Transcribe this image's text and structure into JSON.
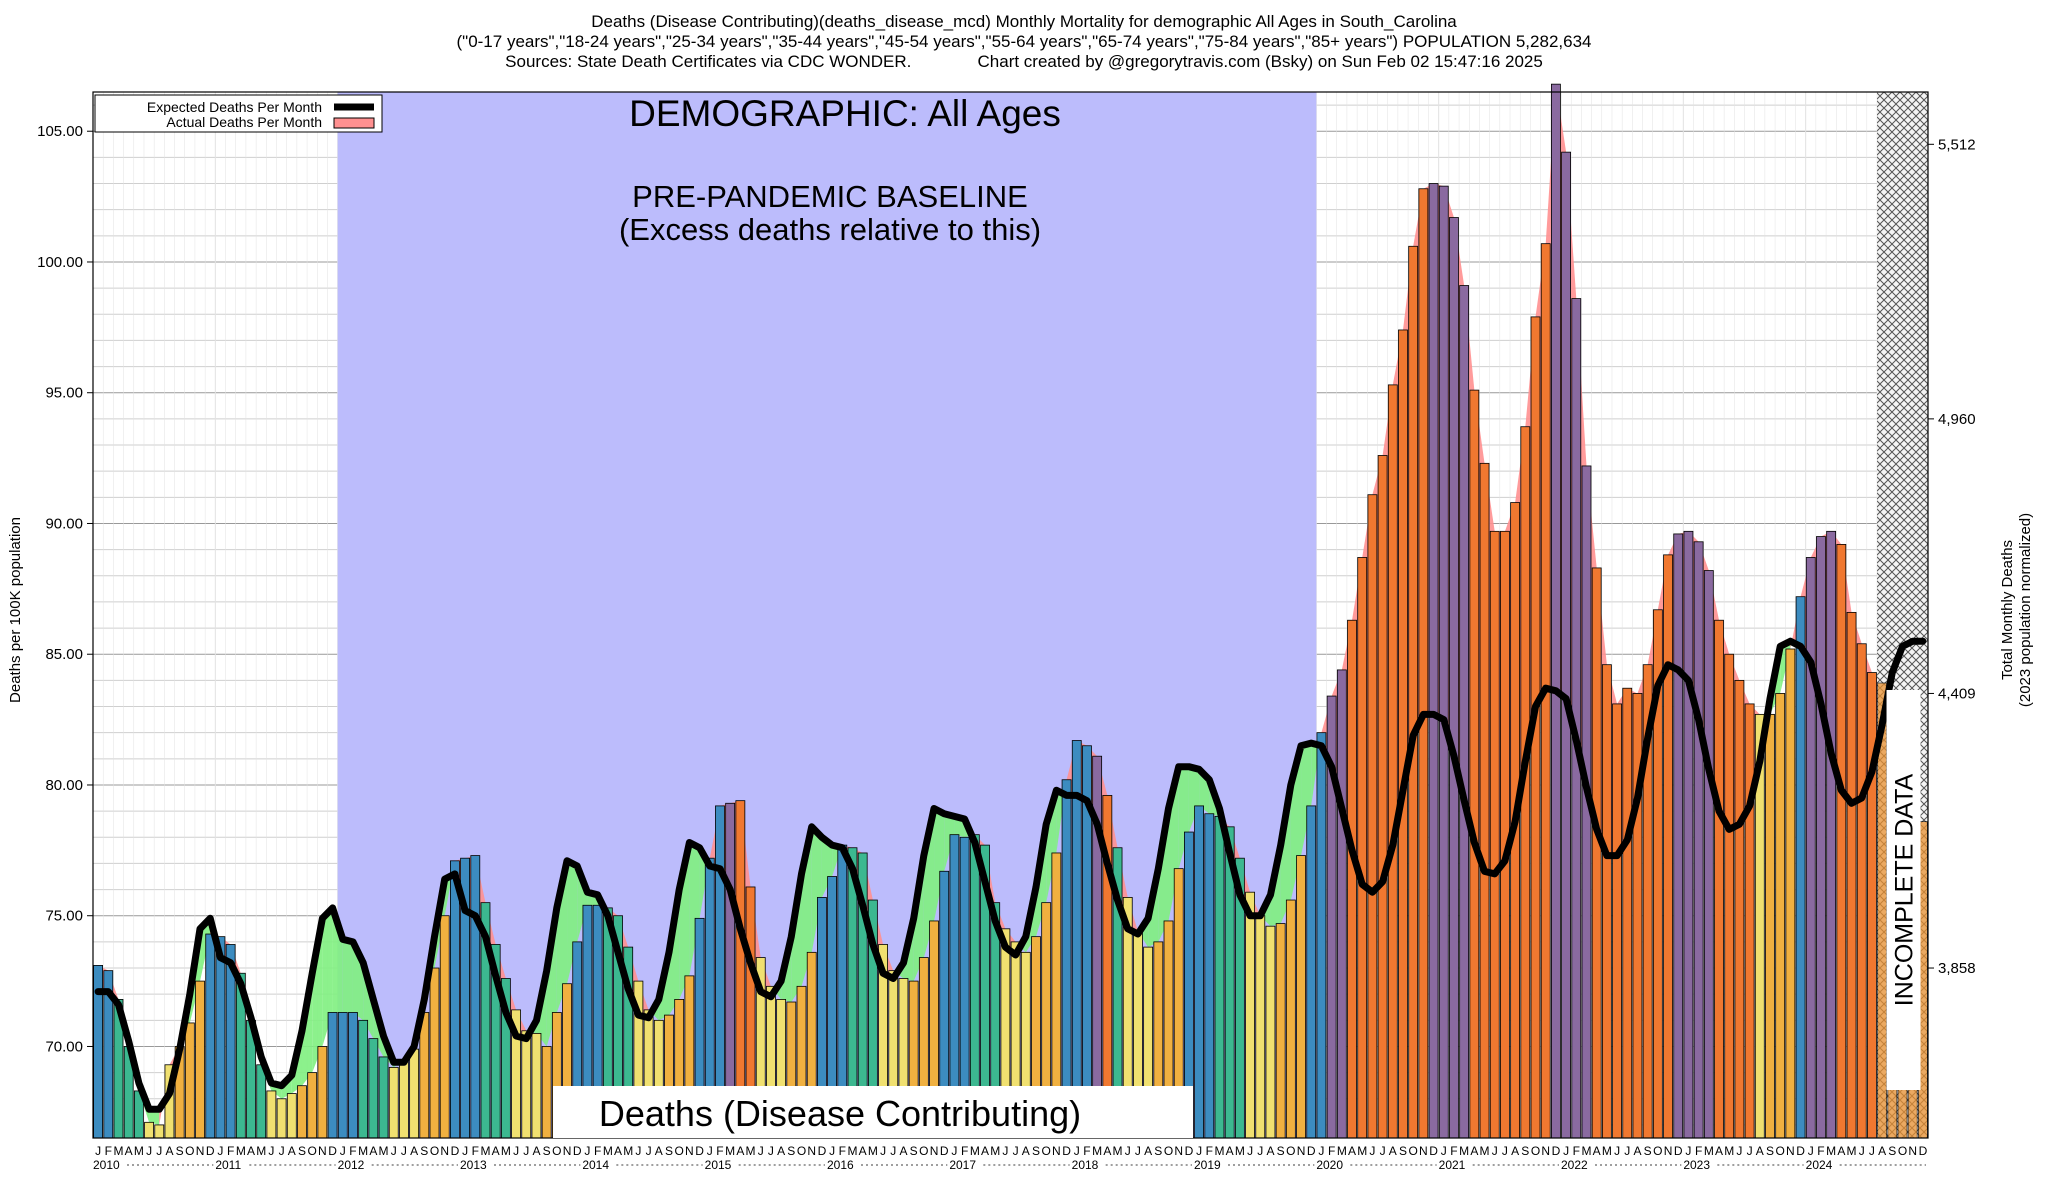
{
  "header": {
    "line1": "Deaths (Disease Contributing)(deaths_disease_mcd) Monthly Mortality for demographic All Ages in South_Carolina",
    "line2": "(\"0-17 years\",\"18-24 years\",\"25-34 years\",\"35-44 years\",\"45-54 years\",\"55-64 years\",\"65-74 years\",\"75-84 years\",\"85+ years\") POPULATION 5,282,634",
    "line3_left": "Sources: State Death Certificates via CDC WONDER.",
    "line3_right": "Chart created by @gregorytravis.com (Bsky) on Sun Feb 02 15:47:16 2025"
  },
  "annotations": {
    "demographic": "DEMOGRAPHIC: All Ages",
    "baseline_line1": "PRE-PANDEMIC BASELINE",
    "baseline_line2": "(Excess deaths relative to this)",
    "incomplete": "INCOMPLETE DATA",
    "measure_box": "Deaths (Disease Contributing)"
  },
  "legend": {
    "expected": "Expected Deaths Per Month",
    "actual": "Actual Deaths Per Month"
  },
  "colors": {
    "baseline_shade": "#bcbcfc",
    "expected_line": "#000000",
    "excess_fill": "#ff9090",
    "deficit_fill": "#80f080",
    "winter_bar": "#3c8cc0",
    "spring_bar": "#3cb890",
    "summer_bar": "#f0e070",
    "fall_bar": "#f0b040",
    "excess_bar": "#f07830",
    "mixed_bar": "#8a6aa0"
  },
  "chart_data": {
    "type": "bar",
    "title": "Deaths (Disease Contributing)(deaths_disease_mcd) Monthly Mortality for demographic All Ages in South_Carolina",
    "ylabel": "Deaths per 100K population",
    "ylabel_right": "Total Monthly Deaths",
    "ylabel_right_sub": "(2023 population normalized)",
    "ylim": [
      66.5,
      106.5
    ],
    "yticks": [
      "70.00",
      "75.00",
      "80.00",
      "85.00",
      "90.00",
      "95.00",
      "100.00",
      "105.00"
    ],
    "right_ticks": [
      {
        "label": "3,858",
        "value": 73.0
      },
      {
        "label": "4,409",
        "value": 83.5
      },
      {
        "label": "4,960",
        "value": 94.0
      },
      {
        "label": "5,512",
        "value": 104.5
      }
    ],
    "month_letters": [
      "J",
      "F",
      "M",
      "A",
      "M",
      "J",
      "J",
      "A",
      "S",
      "O",
      "N",
      "D"
    ],
    "years": [
      "2010",
      "2011",
      "2012",
      "2013",
      "2014",
      "2015",
      "2016",
      "2017",
      "2018",
      "2019",
      "2020",
      "2021",
      "2022",
      "2023",
      "2024"
    ],
    "baseline_period": [
      "2012-01",
      "2019-12"
    ],
    "incomplete_from": "2024-08",
    "series": [
      {
        "name": "Actual Deaths Per Month",
        "values": [
          73.1,
          72.9,
          71.8,
          70.0,
          68.3,
          67.1,
          67.0,
          69.3,
          70.0,
          70.9,
          72.5,
          74.3,
          74.2,
          73.9,
          72.8,
          71.0,
          69.3,
          68.3,
          68.0,
          68.2,
          68.5,
          69.0,
          70.0,
          71.3,
          71.3,
          71.3,
          71.0,
          70.3,
          69.6,
          69.2,
          69.5,
          69.9,
          71.3,
          73.0,
          75.0,
          77.1,
          77.2,
          77.3,
          75.5,
          73.9,
          72.6,
          71.4,
          70.6,
          70.5,
          70.0,
          71.3,
          72.4,
          74.0,
          75.4,
          75.4,
          75.3,
          75.0,
          73.8,
          72.5,
          71.4,
          71.0,
          71.2,
          71.8,
          72.7,
          74.9,
          77.2,
          79.2,
          79.3,
          79.4,
          76.1,
          73.4,
          72.3,
          71.8,
          71.7,
          72.3,
          73.6,
          75.7,
          76.5,
          77.7,
          77.6,
          77.4,
          75.6,
          73.9,
          72.9,
          72.6,
          72.5,
          73.4,
          74.8,
          76.7,
          78.1,
          78.0,
          78.1,
          77.7,
          75.5,
          74.5,
          74.0,
          73.6,
          74.2,
          75.5,
          77.4,
          80.2,
          81.7,
          81.5,
          81.1,
          79.6,
          77.6,
          75.7,
          74.4,
          73.8,
          74.0,
          74.8,
          76.8,
          78.2,
          79.2,
          78.9,
          78.8,
          78.4,
          77.2,
          75.9,
          75.0,
          74.6,
          74.7,
          75.6,
          77.3,
          79.2,
          82.0,
          83.4,
          84.4,
          86.3,
          88.7,
          91.1,
          92.6,
          95.3,
          97.4,
          100.6,
          102.8,
          103.0,
          102.9,
          101.7,
          99.1,
          95.1,
          92.3,
          89.7,
          89.7,
          90.8,
          93.7,
          97.9,
          100.7,
          106.8,
          104.2,
          98.6,
          92.2,
          88.3,
          84.6,
          83.1,
          83.7,
          83.5,
          84.6,
          86.7,
          88.8,
          89.6,
          89.7,
          89.3,
          88.2,
          86.3,
          85.0,
          84.0,
          83.1,
          82.7,
          82.7,
          83.5,
          85.2,
          87.2,
          88.7,
          89.5,
          89.7,
          89.2,
          86.6,
          85.4,
          84.3,
          83.9,
          83.4,
          82.8,
          82.0,
          78.6
        ]
      },
      {
        "name": "Expected Deaths Per Month",
        "values": [
          72.1,
          72.1,
          71.6,
          70.2,
          68.6,
          67.6,
          67.6,
          68.2,
          69.9,
          72.0,
          74.5,
          74.9,
          73.4,
          73.2,
          72.4,
          71.1,
          69.6,
          68.6,
          68.5,
          68.9,
          70.6,
          72.8,
          74.9,
          75.3,
          74.1,
          74.0,
          73.2,
          71.8,
          70.4,
          69.4,
          69.4,
          70.0,
          71.8,
          74.2,
          76.4,
          76.6,
          75.2,
          75.0,
          74.2,
          72.7,
          71.3,
          70.4,
          70.3,
          71.0,
          72.9,
          75.3,
          77.1,
          76.9,
          75.9,
          75.8,
          75.0,
          73.6,
          72.2,
          71.2,
          71.1,
          71.8,
          73.6,
          76.0,
          77.8,
          77.6,
          76.9,
          76.8,
          76.0,
          74.5,
          73.2,
          72.1,
          71.9,
          72.5,
          74.2,
          76.6,
          78.4,
          78.0,
          77.7,
          77.6,
          76.8,
          75.4,
          73.9,
          72.8,
          72.6,
          73.2,
          74.9,
          77.3,
          79.1,
          78.9,
          78.8,
          78.7,
          77.8,
          76.3,
          74.8,
          73.8,
          73.5,
          74.2,
          76.1,
          78.5,
          79.8,
          79.6,
          79.6,
          79.4,
          78.5,
          77.0,
          75.6,
          74.5,
          74.3,
          74.9,
          76.8,
          79.1,
          80.7,
          80.7,
          80.6,
          80.2,
          79.1,
          77.4,
          75.8,
          75.0,
          75.0,
          75.8,
          77.7,
          80.0,
          81.5,
          81.6,
          81.5,
          80.7,
          79.1,
          77.5,
          76.2,
          75.9,
          76.3,
          77.7,
          79.8,
          81.9,
          82.7,
          82.7,
          82.5,
          81.1,
          79.4,
          77.8,
          76.7,
          76.6,
          77.1,
          78.6,
          80.9,
          83.0,
          83.7,
          83.6,
          83.3,
          81.7,
          79.9,
          78.3,
          77.3,
          77.3,
          77.9,
          79.5,
          81.8,
          83.8,
          84.6,
          84.4,
          84.0,
          82.5,
          80.6,
          79.0,
          78.3,
          78.5,
          79.2,
          80.9,
          83.3,
          85.3,
          85.5,
          85.3,
          84.7,
          83.1,
          81.2,
          79.8,
          79.3,
          79.5,
          80.5,
          82.3,
          84.3,
          85.3,
          85.5,
          85.5
        ]
      }
    ]
  }
}
